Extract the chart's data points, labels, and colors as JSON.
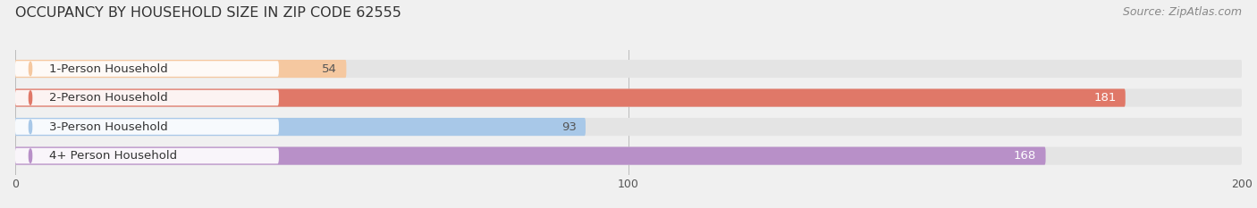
{
  "title": "OCCUPANCY BY HOUSEHOLD SIZE IN ZIP CODE 62555",
  "source": "Source: ZipAtlas.com",
  "categories": [
    "1-Person Household",
    "2-Person Household",
    "3-Person Household",
    "4+ Person Household"
  ],
  "values": [
    54,
    181,
    93,
    168
  ],
  "bar_colors": [
    "#f5c8a0",
    "#e07868",
    "#a8c8e8",
    "#b890c8"
  ],
  "label_colors": [
    "#555555",
    "#ffffff",
    "#555555",
    "#ffffff"
  ],
  "track_color": "#e4e4e4",
  "label_bg_color": "#f0f0f0",
  "xlim": [
    0,
    200
  ],
  "xticks": [
    0,
    100,
    200
  ],
  "title_fontsize": 11.5,
  "source_fontsize": 9,
  "label_fontsize": 9.5,
  "value_fontsize": 9.5,
  "background_color": "#f0f0f0",
  "bar_height": 0.62,
  "figsize": [
    14.06,
    2.33
  ]
}
